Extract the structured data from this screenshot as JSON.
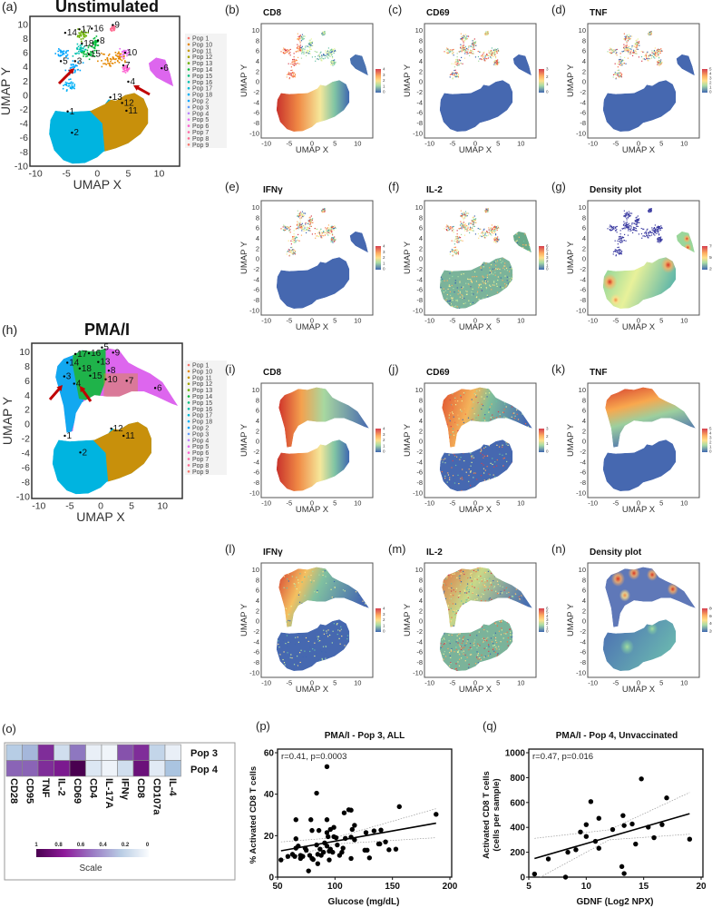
{
  "umap": {
    "xlabel": "UMAP  X",
    "ylabel": "UMAP  Y",
    "xticks": [
      "-10",
      "-5",
      "0",
      "5",
      "10"
    ],
    "yticks_big": [
      "10",
      "8",
      "6",
      "4",
      "2",
      "0",
      "-2",
      "-4",
      "-6",
      "-8",
      "-10"
    ],
    "yticks_small": [
      "10",
      "8",
      "6",
      "4",
      "2",
      "0",
      "-2",
      "-4",
      "-6",
      "-8",
      "-10"
    ]
  },
  "panel_a": {
    "label": "(a)",
    "title": "Unstimulated",
    "cluster_labels": [
      {
        "id": "9",
        "x": 2.8,
        "y": 9.5
      },
      {
        "id": "14",
        "x": -4.9,
        "y": 8.4
      },
      {
        "id": "17",
        "x": -2.6,
        "y": 8.9
      },
      {
        "id": "16",
        "x": -0.6,
        "y": 9.0
      },
      {
        "id": "18",
        "x": -2.2,
        "y": 6.9
      },
      {
        "id": "8",
        "x": 0.4,
        "y": 7.3
      },
      {
        "id": "10",
        "x": 4.8,
        "y": 5.6
      },
      {
        "id": "15",
        "x": -1.1,
        "y": 5.4
      },
      {
        "id": "5",
        "x": -5.6,
        "y": 4.4
      },
      {
        "id": "3",
        "x": -3.3,
        "y": 4.4
      },
      {
        "id": "7",
        "x": 4.5,
        "y": 3.8
      },
      {
        "id": "6",
        "x": 10.7,
        "y": 3.4
      },
      {
        "id": "4",
        "x": 5.3,
        "y": 1.5
      },
      {
        "id": "13",
        "x": 2.4,
        "y": -0.7
      },
      {
        "id": "12",
        "x": 4.3,
        "y": -1.5
      },
      {
        "id": "11",
        "x": 5.0,
        "y": -2.6
      },
      {
        "id": "1",
        "x": -4.5,
        "y": -2.7
      },
      {
        "id": "2",
        "x": -3.8,
        "y": -5.7
      }
    ]
  },
  "panel_h": {
    "label": "(h)",
    "title": "PMA/I",
    "cluster_labels": [
      {
        "id": "5",
        "x": 0.5,
        "y": 10.2
      },
      {
        "id": "9",
        "x": 2.3,
        "y": 9.5
      },
      {
        "id": "17",
        "x": -3.8,
        "y": 9.3
      },
      {
        "id": "16",
        "x": -1.6,
        "y": 9.4
      },
      {
        "id": "14",
        "x": -5.1,
        "y": 8.1
      },
      {
        "id": "13",
        "x": -0.1,
        "y": 8.2
      },
      {
        "id": "18",
        "x": -3.1,
        "y": 7.3
      },
      {
        "id": "8",
        "x": 1.6,
        "y": 7.0
      },
      {
        "id": "3",
        "x": -5.6,
        "y": 6.2
      },
      {
        "id": "15",
        "x": -1.4,
        "y": 6.3
      },
      {
        "id": "10",
        "x": 1.1,
        "y": 5.8
      },
      {
        "id": "7",
        "x": 4.5,
        "y": 5.6
      },
      {
        "id": "4",
        "x": -4.0,
        "y": 5.2
      },
      {
        "id": "6",
        "x": 9.1,
        "y": 4.6
      },
      {
        "id": "12",
        "x": 2.0,
        "y": -1.0
      },
      {
        "id": "11",
        "x": 4.0,
        "y": -2.0
      },
      {
        "id": "1",
        "x": -5.5,
        "y": -2.0
      },
      {
        "id": "2",
        "x": -3.0,
        "y": -4.3
      }
    ]
  },
  "legend": {
    "items": [
      "Pop 1",
      "Pop 10",
      "Pop 11",
      "Pop 12",
      "Pop 13",
      "Pop 14",
      "Pop 15",
      "Pop 16",
      "Pop 17",
      "Pop 18",
      "Pop 2",
      "Pop 3",
      "Pop 4",
      "Pop 5",
      "Pop 6",
      "Pop 7",
      "Pop 8",
      "Pop 9"
    ],
    "colors": [
      "#f8766d",
      "#e58700",
      "#c99800",
      "#a3a500",
      "#6bb100",
      "#00ba38",
      "#00bf7d",
      "#00c0af",
      "#00bcd8",
      "#00b0f6",
      "#00a5ff",
      "#619cff",
      "#b983ff",
      "#e76bf3",
      "#fd61d1",
      "#ff67a4",
      "#ff6c91",
      "#f8766d"
    ]
  },
  "small_panels": [
    {
      "label": "(b)",
      "title": "CD8",
      "scale": [
        "0",
        "1",
        "2",
        "3",
        "4"
      ]
    },
    {
      "label": "(c)",
      "title": "CD69",
      "scale": [
        "0",
        "1",
        "2",
        "3"
      ]
    },
    {
      "label": "(d)",
      "title": "TNF",
      "scale": [
        "0",
        "1",
        "2",
        "3",
        "4",
        "5"
      ]
    },
    {
      "label": "(e)",
      "title": "IFNγ",
      "scale": [
        "0",
        "1",
        "2",
        "3",
        "4"
      ]
    },
    {
      "label": "(f)",
      "title": "IL-2",
      "scale": [
        "0",
        "1",
        "2",
        "3",
        "4",
        "5",
        "6"
      ]
    },
    {
      "label": "(g)",
      "title": "Density plot",
      "scale": [
        "2500",
        "5000",
        "7500"
      ]
    },
    {
      "label": "(i)",
      "title": "CD8",
      "scale": [
        "0",
        "1",
        "2",
        "3",
        "4"
      ]
    },
    {
      "label": "(j)",
      "title": "CD69",
      "scale": [
        "0",
        "1",
        "2",
        "3"
      ]
    },
    {
      "label": "(k)",
      "title": "TNF",
      "scale": [
        "0",
        "1",
        "2",
        "3",
        "4",
        "5"
      ]
    },
    {
      "label": "(l)",
      "title": "IFNγ",
      "scale": [
        "0",
        "1",
        "2",
        "3",
        "4"
      ]
    },
    {
      "label": "(m)",
      "title": "IL-2",
      "scale": [
        "0",
        "1",
        "2",
        "3",
        "4",
        "5",
        "6"
      ]
    },
    {
      "label": "(n)",
      "title": "Density plot",
      "scale": [
        "2000",
        "4000",
        "6000",
        "8000"
      ]
    }
  ],
  "colors": {
    "arrow": "#c00000",
    "cyan": "#00b4e0",
    "orange": "#c8900b",
    "green": "#1fb34a",
    "magenta": "#dd66ee"
  },
  "chart_data": [
    {
      "type": "heatmap",
      "label": "(o)",
      "rows": [
        "Pop 3",
        "Pop 4"
      ],
      "columns": [
        "CD28",
        "CD95",
        "TNF",
        "IL-2",
        "CD69",
        "CD4",
        "IL-17A",
        "IFNγ",
        "CD8",
        "CD107a",
        "IL-4"
      ],
      "values": [
        [
          0.25,
          0.35,
          0.8,
          0.15,
          0.6,
          0.05,
          0.02,
          0.7,
          0.8,
          0.2,
          0.05
        ],
        [
          0.65,
          0.65,
          0.8,
          0.85,
          1.0,
          0.1,
          0.03,
          0.15,
          0.9,
          0.08,
          0.3
        ]
      ],
      "scale_ticks": [
        "1",
        "0.8",
        "0.6",
        "0.4",
        "0.2",
        "0"
      ],
      "scale_label": "Scale"
    },
    {
      "type": "scatter",
      "label": "(p)",
      "title": "PMA/I - Pop 3, ALL",
      "annotation": "r=0.41, p=0.0003",
      "xlabel": "Glucose (mg/dL)",
      "ylabel": "% Activated CD8 T cells",
      "xlim": [
        50,
        200
      ],
      "ylim": [
        0,
        60
      ],
      "xticks": [
        "50",
        "100",
        "150",
        "200"
      ],
      "yticks": [
        "0",
        "20",
        "40",
        "60"
      ],
      "points": [
        [
          53,
          8.3
        ],
        [
          59,
          10
        ],
        [
          63,
          11
        ],
        [
          65,
          10
        ],
        [
          66,
          14
        ],
        [
          66,
          18.5
        ],
        [
          66,
          27.7
        ],
        [
          68,
          15
        ],
        [
          70,
          9
        ],
        [
          70,
          10.5
        ],
        [
          72,
          10
        ],
        [
          74,
          14
        ],
        [
          75,
          13
        ],
        [
          77,
          3
        ],
        [
          78,
          10.5
        ],
        [
          79,
          27.7
        ],
        [
          80,
          22.5
        ],
        [
          80,
          9
        ],
        [
          81,
          8.5
        ],
        [
          84,
          40.5
        ],
        [
          84,
          15.5
        ],
        [
          85,
          11
        ],
        [
          85,
          6.5
        ],
        [
          86,
          22.5
        ],
        [
          87,
          13.5
        ],
        [
          88,
          10.5
        ],
        [
          90,
          12
        ],
        [
          91,
          16.5
        ],
        [
          93,
          15
        ],
        [
          93,
          53.3
        ],
        [
          93,
          27.7
        ],
        [
          93,
          21.5
        ],
        [
          94,
          19.5
        ],
        [
          95,
          12.5
        ],
        [
          95,
          8.3
        ],
        [
          96,
          13.5
        ],
        [
          96,
          23
        ],
        [
          98,
          12
        ],
        [
          99,
          24
        ],
        [
          99,
          19.5
        ],
        [
          101,
          19
        ],
        [
          102,
          15.5
        ],
        [
          104,
          10.5
        ],
        [
          106,
          12
        ],
        [
          107,
          14
        ],
        [
          108,
          31
        ],
        [
          109,
          18.7
        ],
        [
          112,
          32.5
        ],
        [
          114,
          32.3
        ],
        [
          114,
          19.3
        ],
        [
          114,
          9
        ],
        [
          115,
          23
        ],
        [
          117,
          25
        ],
        [
          117,
          18
        ],
        [
          126,
          13
        ],
        [
          127,
          21.5
        ],
        [
          128,
          13
        ],
        [
          130,
          9.3
        ],
        [
          134,
          22.3
        ],
        [
          138,
          16
        ],
        [
          139,
          16
        ],
        [
          140,
          22.7
        ],
        [
          144,
          17
        ],
        [
          147,
          13.2
        ],
        [
          153,
          13.5
        ],
        [
          156,
          34
        ],
        [
          188,
          30.3
        ]
      ],
      "fit": [
        [
          53,
          12.7
        ],
        [
          188,
          26
        ]
      ],
      "ci_upper": [
        [
          53,
          17
        ],
        [
          100,
          19
        ],
        [
          188,
          33
        ]
      ],
      "ci_lower": [
        [
          53,
          8
        ],
        [
          100,
          16
        ],
        [
          188,
          19
        ]
      ]
    },
    {
      "type": "scatter",
      "label": "(q)",
      "title": "PMA/I - Pop 4, Unvaccinated",
      "annotation": "r=0.47, p=0.016",
      "xlabel": "GDNF (Log2 NPX)",
      "ylabel": "Activated CD8 T cells",
      "ylabel2": "(cells per sample)",
      "xlim": [
        5,
        20
      ],
      "ylim": [
        0,
        1000
      ],
      "xticks": [
        "5",
        "10",
        "15",
        "20"
      ],
      "yticks": [
        "0",
        "200",
        "400",
        "600",
        "800",
        "1000"
      ],
      "points": [
        [
          5.5,
          25
        ],
        [
          6.7,
          146
        ],
        [
          8.2,
          0
        ],
        [
          8.4,
          200
        ],
        [
          9.1,
          220
        ],
        [
          9.5,
          363
        ],
        [
          10,
          422
        ],
        [
          10,
          327
        ],
        [
          10.4,
          607
        ],
        [
          10.8,
          288
        ],
        [
          11.1,
          473
        ],
        [
          11.1,
          232
        ],
        [
          12.3,
          383
        ],
        [
          13.1,
          85
        ],
        [
          13.2,
          495
        ],
        [
          13.3,
          29
        ],
        [
          13.3,
          415
        ],
        [
          14,
          427
        ],
        [
          14.3,
          266
        ],
        [
          14.8,
          790
        ],
        [
          15.4,
          402
        ],
        [
          15.9,
          317
        ],
        [
          16.6,
          422
        ],
        [
          17,
          637
        ],
        [
          19,
          305
        ]
      ],
      "fit": [
        [
          5.5,
          150
        ],
        [
          19,
          510
        ]
      ],
      "ci_upper": [
        [
          5.5,
          312
        ],
        [
          12,
          380
        ],
        [
          19,
          680
        ]
      ],
      "ci_lower": [
        [
          6,
          0
        ],
        [
          12,
          300
        ],
        [
          19,
          345
        ]
      ]
    }
  ]
}
